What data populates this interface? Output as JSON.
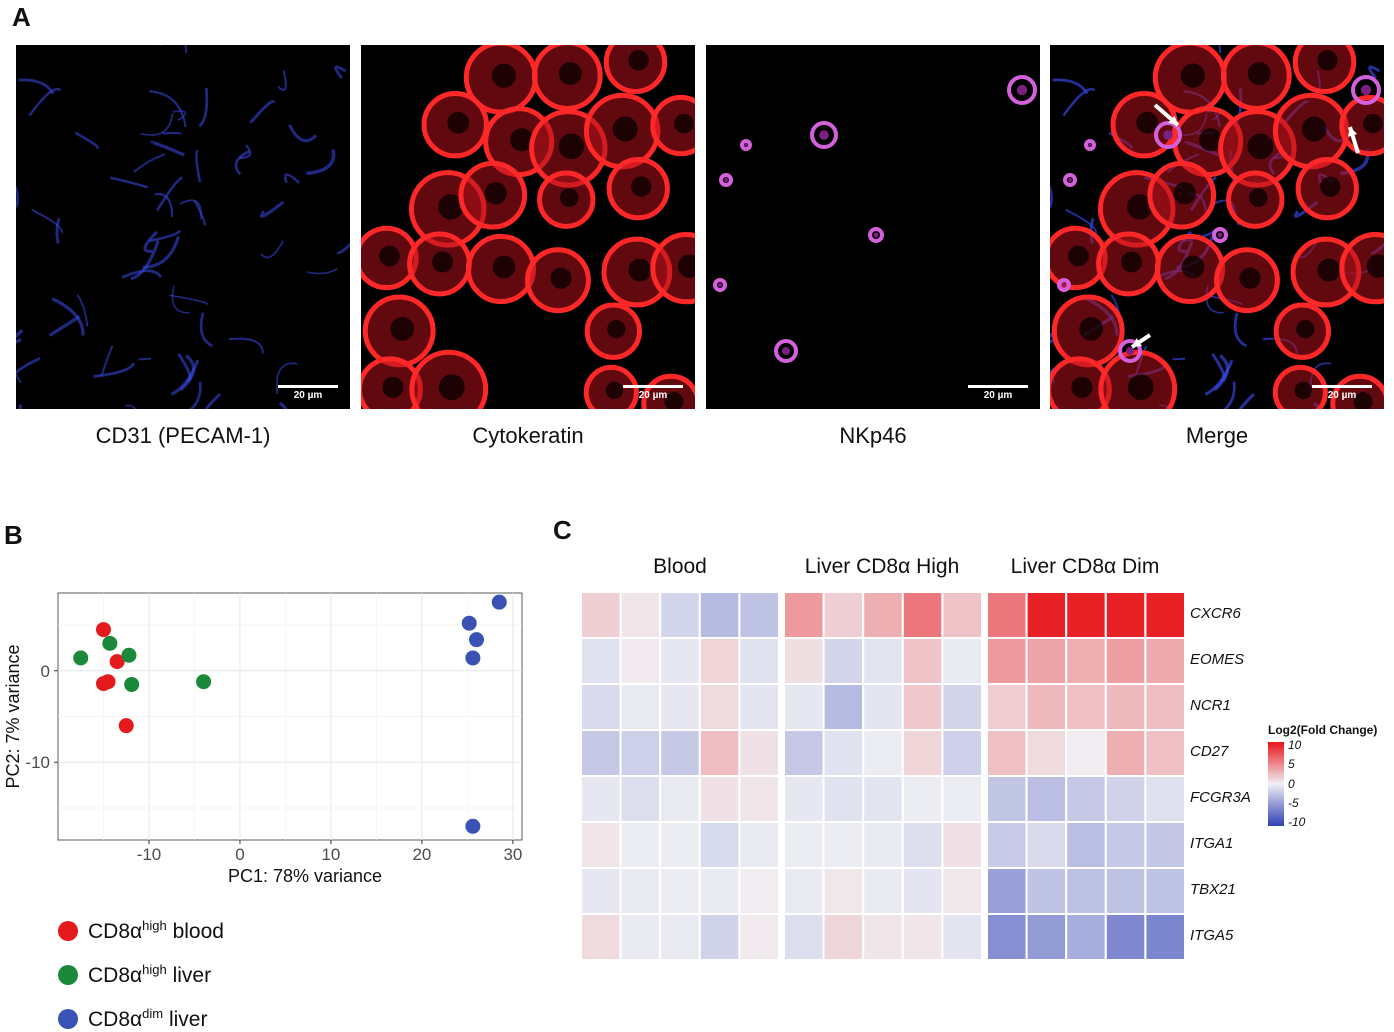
{
  "panel_a": {
    "letter": "A",
    "images": [
      {
        "label": "CD31 (PECAM-1)",
        "scale": "20 µm",
        "channel_color": "#3a4cff"
      },
      {
        "label": "Cytokeratin",
        "scale": "20 µm",
        "channel_color": "#ff2020"
      },
      {
        "label": "NKp46",
        "scale": "20 µm",
        "channel_color": "#d05ad8"
      },
      {
        "label": "Merge",
        "scale": "20 µm",
        "channel_color": "#ff2020"
      }
    ]
  },
  "panel_b": {
    "letter": "B",
    "legend": [
      {
        "main": "CD8α",
        "sup": "high",
        "rest": " blood",
        "color": "#e41a1c"
      },
      {
        "main": "CD8α",
        "sup": "high",
        "rest": " liver",
        "color": "#1a8a3a"
      },
      {
        "main": "CD8α",
        "sup": "dim",
        "rest": " liver",
        "color": "#3a52b4"
      }
    ]
  },
  "panel_c": {
    "letter": "C",
    "legend_title": "Log2(Fold Change)",
    "legend_ticks": [
      "10",
      "5",
      "0",
      "-5",
      "-10"
    ]
  },
  "chart_data": [
    {
      "type": "scatter",
      "xlabel": "PC1: 78% variance",
      "ylabel": "PC2: 7% variance",
      "xlim": [
        -20,
        31
      ],
      "ylim": [
        -18.5,
        8.5
      ],
      "xticks": [
        -10,
        0,
        10,
        20,
        30
      ],
      "yticks": [
        0,
        -10
      ],
      "grid": true,
      "series": [
        {
          "name": "CD8αhigh blood",
          "color": "#e41a1c",
          "points": [
            [
              -15.0,
              4.5
            ],
            [
              -13.5,
              1.0
            ],
            [
              -14.5,
              -1.2
            ],
            [
              -15.0,
              -1.4
            ],
            [
              -12.5,
              -6.0
            ]
          ]
        },
        {
          "name": "CD8αhigh liver",
          "color": "#1a8a3a",
          "points": [
            [
              -17.5,
              1.4
            ],
            [
              -14.3,
              3.0
            ],
            [
              -12.2,
              1.7
            ],
            [
              -11.9,
              -1.5
            ],
            [
              -4.0,
              -1.2
            ]
          ]
        },
        {
          "name": "CD8αdim liver",
          "color": "#3a52b4",
          "points": [
            [
              28.5,
              7.5
            ],
            [
              25.2,
              5.2
            ],
            [
              26.0,
              3.4
            ],
            [
              25.6,
              1.4
            ],
            [
              25.6,
              -17.0
            ]
          ]
        }
      ]
    },
    {
      "type": "heatmap",
      "groups": [
        "Blood",
        "Liver CD8α High",
        "Liver CD8α Dim"
      ],
      "columns_per_group": 5,
      "genes": [
        "CXCR6",
        "EOMES",
        "NCR1",
        "CD27",
        "FCGR3A",
        "ITGA1",
        "TBX21",
        "ITGA5"
      ],
      "colorbar": {
        "min": -10,
        "max": 10,
        "low": "#2f3fb4",
        "mid": "#f0f0f4",
        "high": "#e8161c"
      },
      "values": [
        [
          1.5,
          0.5,
          -1.5,
          -3,
          -2.5,
          4,
          1.5,
          3,
          5.5,
          2,
          5.5,
          9.5,
          9.5,
          9.5,
          9.5
        ],
        [
          -0.8,
          0.3,
          -0.5,
          1.3,
          -0.8,
          0.8,
          -1.5,
          -0.7,
          2,
          -0.3,
          4,
          3.5,
          3,
          3.7,
          3.3
        ],
        [
          -1.2,
          -0.4,
          -0.5,
          1,
          -0.6,
          -0.5,
          -3,
          -0.6,
          1.8,
          -1.5,
          1.6,
          2.5,
          2.2,
          2.5,
          2.3
        ],
        [
          -2.2,
          -1.8,
          -2.2,
          2.3,
          0.7,
          -2.2,
          -0.8,
          -0.2,
          1.3,
          -1.8,
          2.2,
          1,
          0.2,
          3,
          2.2
        ],
        [
          -0.5,
          -1,
          -0.4,
          0.7,
          0.5,
          -0.5,
          -0.8,
          -0.7,
          -0.2,
          -0.2,
          -2.4,
          -2.8,
          -2.2,
          -1.7,
          -0.9
        ],
        [
          0.5,
          -0.2,
          -0.2,
          -1.3,
          -0.3,
          -0.2,
          -0.2,
          -0.3,
          -1,
          0.7,
          -2.1,
          -1.2,
          -2.8,
          -2.2,
          -2.3
        ],
        [
          -0.5,
          -0.3,
          -0.2,
          -0.3,
          0.2,
          -0.3,
          0.4,
          -0.3,
          -0.6,
          0.4,
          -4.5,
          -2.5,
          -2.7,
          -2.6,
          -2.6
        ],
        [
          1,
          -0.3,
          -0.4,
          -1.7,
          0.3,
          -1,
          1.2,
          0.5,
          0.5,
          -0.6,
          -5.5,
          -4.8,
          -3.8,
          -5.8,
          -6
        ]
      ]
    }
  ]
}
